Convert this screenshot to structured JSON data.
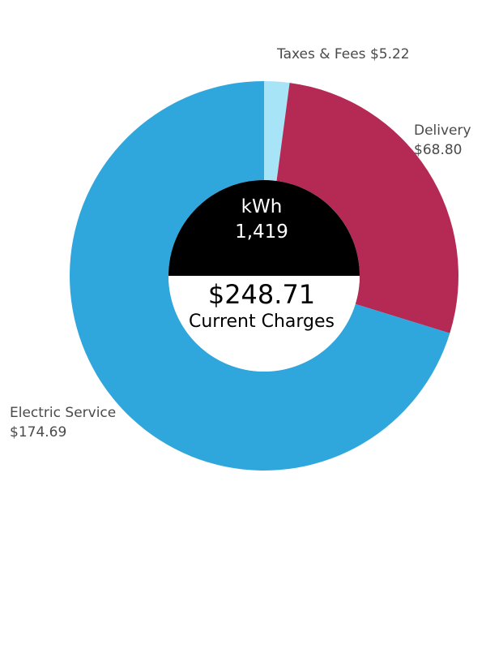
{
  "chart_data": {
    "type": "pie",
    "style": "donut",
    "categories": [
      "Taxes & Fees",
      "Delivery",
      "Electric Service"
    ],
    "values": [
      5.22,
      68.8,
      174.69
    ],
    "value_labels": [
      "$5.22",
      "$68.80",
      "$174.69"
    ],
    "colors": [
      "#a8e4f7",
      "#b52a55",
      "#2fa7dd"
    ],
    "center": {
      "unit_label": "kWh",
      "unit_value": "1,419",
      "total": "$248.71",
      "caption": "Current Charges",
      "top_color": "#000000",
      "bottom_color": "#ffffff"
    }
  }
}
